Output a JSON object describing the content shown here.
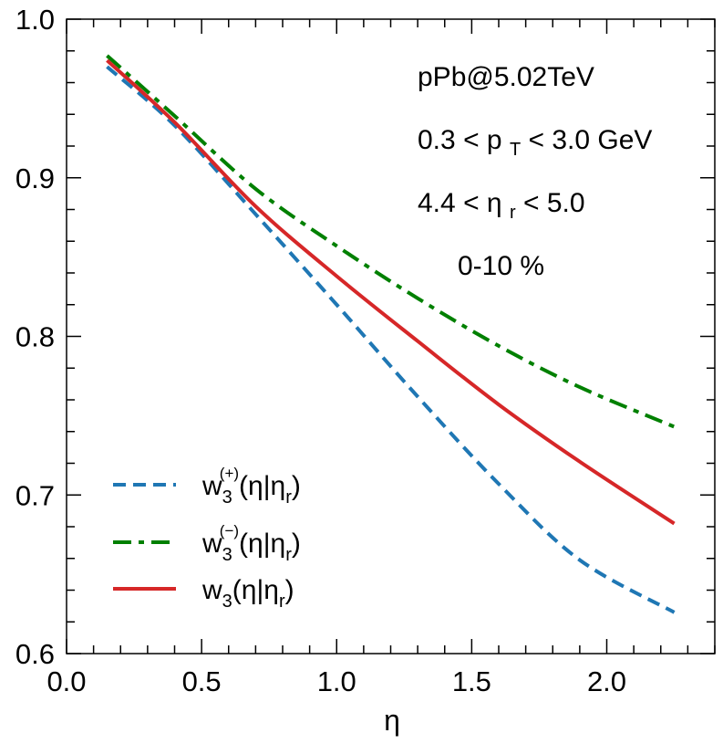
{
  "chart_data": {
    "type": "line",
    "title": "",
    "xlabel": "η",
    "ylabel": "",
    "xlim": [
      0.0,
      2.4
    ],
    "ylim": [
      0.6,
      1.0
    ],
    "x_ticks": [
      "0.0",
      "0.5",
      "1.0",
      "1.5",
      "2.0"
    ],
    "y_ticks": [
      "0.6",
      "0.7",
      "0.8",
      "0.9",
      "1.0"
    ],
    "grid": false,
    "legend_position": "bottom-left",
    "annotations": {
      "system": "pPb@5.02TeV",
      "pt_range": {
        "lo": "0.3",
        "sym": "p",
        "sub": "T",
        "hi": "3.0 GeV"
      },
      "eta_range": {
        "lo": "4.4",
        "sym": "η",
        "sub": "r",
        "hi": "5.0"
      },
      "centrality": "0-10 %"
    },
    "series": [
      {
        "name": "w3(+)(η|ηr)",
        "legend": {
          "base": "w",
          "sub": "3",
          "sup": "(+)",
          "arg": "(η|η",
          "argsub": "r",
          "close": ")"
        },
        "color": "#1f77b4",
        "style": "dashed",
        "x": [
          0.15,
          0.4,
          0.7,
          1.0,
          1.3,
          1.6,
          1.9,
          2.25
        ],
        "y": [
          0.97,
          0.933,
          0.877,
          0.82,
          0.762,
          0.707,
          0.659,
          0.626
        ]
      },
      {
        "name": "w3(−)(η|ηr)",
        "legend": {
          "base": "w",
          "sub": "3",
          "sup": "(−)",
          "arg": "(η|η",
          "argsub": "r",
          "close": ")"
        },
        "color": "#008000",
        "style": "dashdot",
        "x": [
          0.15,
          0.4,
          0.7,
          1.0,
          1.3,
          1.6,
          1.9,
          2.25
        ],
        "y": [
          0.977,
          0.939,
          0.893,
          0.857,
          0.824,
          0.794,
          0.768,
          0.743
        ]
      },
      {
        "name": "w3(η|ηr)",
        "legend": {
          "base": "w",
          "sub": "3",
          "sup": "",
          "arg": "(η|η",
          "argsub": "r",
          "close": ")"
        },
        "color": "#d62728",
        "style": "solid",
        "x": [
          0.15,
          0.4,
          0.7,
          1.0,
          1.3,
          1.6,
          1.9,
          2.25
        ],
        "y": [
          0.974,
          0.935,
          0.882,
          0.838,
          0.797,
          0.757,
          0.721,
          0.682
        ]
      }
    ]
  }
}
